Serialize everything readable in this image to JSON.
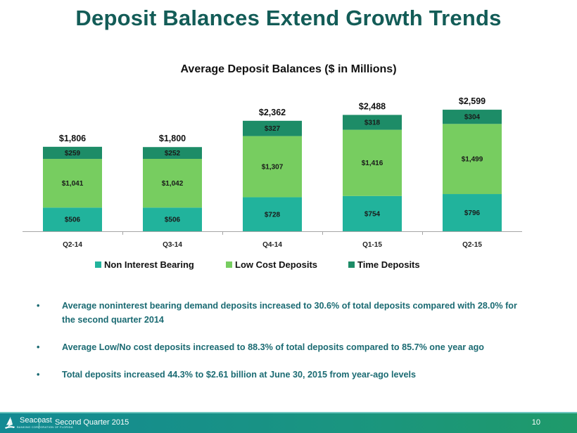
{
  "title": "Deposit Balances Extend Growth Trends",
  "colors": {
    "title": "#135c57",
    "non_interest": "#21b39c",
    "low_cost": "#77cd60",
    "time": "#1d8c67",
    "bullet_text": "#1a6a72"
  },
  "chart_data": {
    "type": "bar",
    "stacked": true,
    "title": "Average Deposit Balances ($ in Millions)",
    "categories": [
      "Q2-14",
      "Q3-14",
      "Q4-14",
      "Q1-15",
      "Q2-15"
    ],
    "series": [
      {
        "name": "Non Interest Bearing",
        "values": [
          506,
          506,
          728,
          754,
          796
        ],
        "labels": [
          "$506",
          "$506",
          "$728",
          "$754",
          "$796"
        ]
      },
      {
        "name": "Low Cost Deposits",
        "values": [
          1041,
          1042,
          1307,
          1416,
          1499
        ],
        "labels": [
          "$1,041",
          "$1,042",
          "$1,307",
          "$1,416",
          "$1,499"
        ]
      },
      {
        "name": "Time Deposits",
        "values": [
          259,
          252,
          327,
          318,
          304
        ],
        "labels": [
          "$259",
          "$252",
          "$327",
          "$318",
          "$304"
        ]
      }
    ],
    "totals": [
      1806,
      1800,
      2362,
      2488,
      2599
    ],
    "total_labels": [
      "$1,806",
      "$1,800",
      "$2,362",
      "$2,488",
      "$2,599"
    ],
    "xlabel": "",
    "ylabel": "",
    "ylim": [
      0,
      2600
    ],
    "grid": false,
    "legend_position": "bottom"
  },
  "bullets": [
    "Average noninterest bearing demand deposits increased to 30.6% of total deposits compared with 28.0% for the second quarter 2014",
    "Average Low/No cost deposits increased to 88.3% of total deposits compared to 85.7% one year ago",
    "Total deposits increased 44.3% to $2.61 billion at June 30, 2015 from year-ago levels"
  ],
  "bullet_symbol": "•",
  "footer": {
    "logo_name": "Seacoast",
    "logo_sub": "BANKING CORPORATION OF FLORIDA",
    "text": "Second Quarter 2015",
    "page": "10"
  }
}
